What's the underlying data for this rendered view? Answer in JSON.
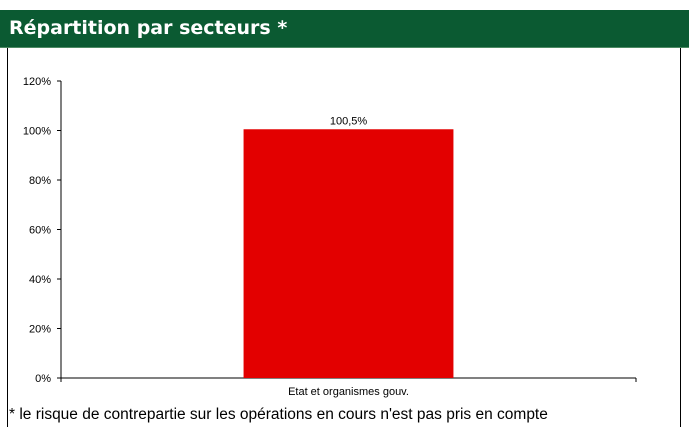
{
  "header": {
    "title": "Répartition par secteurs *"
  },
  "footnote": "* le risque de contrepartie sur les opérations en cours n'est pas pris en compte",
  "colors": {
    "header_bg": "#0b5a32",
    "bar": "#e30000"
  },
  "chart_data": {
    "type": "bar",
    "title": "",
    "xlabel": "",
    "ylabel": "",
    "categories": [
      "Etat et organismes gouv."
    ],
    "values": [
      100.5
    ],
    "value_labels": [
      "100,5%"
    ],
    "ylim": [
      0,
      120
    ],
    "yticks": [
      0,
      20,
      40,
      60,
      80,
      100,
      120
    ],
    "ytick_labels": [
      "0%",
      "20%",
      "40%",
      "60%",
      "80%",
      "100%",
      "120%"
    ],
    "grid": false,
    "legend": "none"
  }
}
